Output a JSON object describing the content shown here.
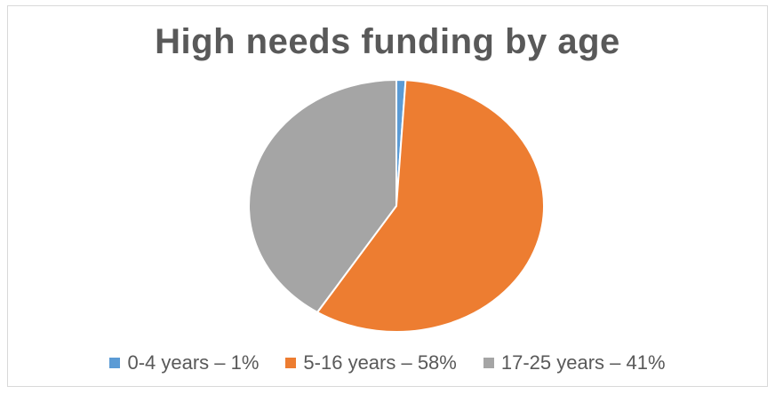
{
  "chart_data": {
    "type": "pie",
    "title": "High needs funding by age",
    "categories": [
      "0-4 years",
      "5-16 years",
      "17-25 years"
    ],
    "values": [
      1,
      58,
      41
    ],
    "colors": [
      "#5b9bd5",
      "#ed7d31",
      "#a5a5a5"
    ],
    "legend_labels": [
      "0-4 years – 1%",
      "5-16 years – 58%",
      "17-25 years – 41%"
    ],
    "legend_position": "bottom"
  }
}
